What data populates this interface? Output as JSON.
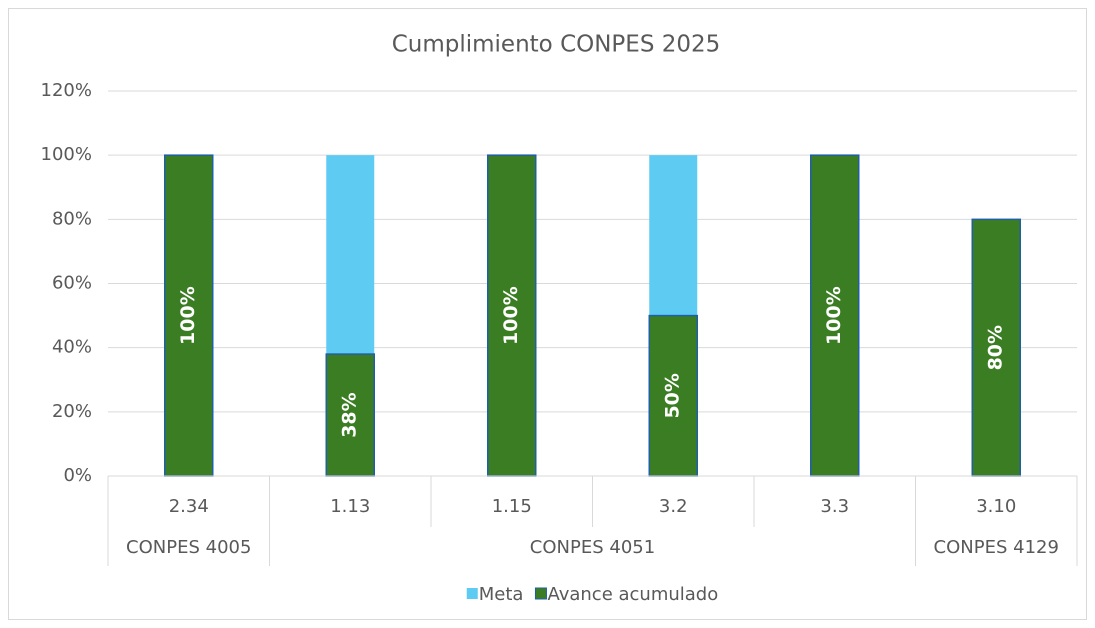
{
  "chart_data": {
    "type": "bar",
    "title": "Cumplimiento CONPES 2025",
    "categories": [
      "2.34",
      "1.13",
      "1.15",
      "3.2",
      "3.3",
      "3.10"
    ],
    "category_groups": [
      "CONPES 4005",
      "CONPES 4051",
      "CONPES 4051",
      "CONPES 4051",
      "CONPES 4051",
      "CONPES 4129"
    ],
    "series": [
      {
        "name": "Meta",
        "color": "#5ECBF3",
        "values": [
          100,
          100,
          100,
          100,
          100,
          80
        ]
      },
      {
        "name": "Avance acumulado",
        "color": "#3B7D23",
        "values": [
          100,
          38,
          100,
          50,
          100,
          80
        ],
        "value_labels": [
          "100%",
          "38%",
          "100%",
          "50%",
          "100%",
          "80%"
        ]
      }
    ],
    "ylim": [
      0,
      120
    ],
    "yticks": [
      {
        "value": 0,
        "label": "0%"
      },
      {
        "value": 20,
        "label": "20%"
      },
      {
        "value": 40,
        "label": "40%"
      },
      {
        "value": 60,
        "label": "60%"
      },
      {
        "value": 80,
        "label": "80%"
      },
      {
        "value": 100,
        "label": "100%"
      },
      {
        "value": 120,
        "label": "120%"
      }
    ],
    "grid": true,
    "legend": "bottom"
  }
}
